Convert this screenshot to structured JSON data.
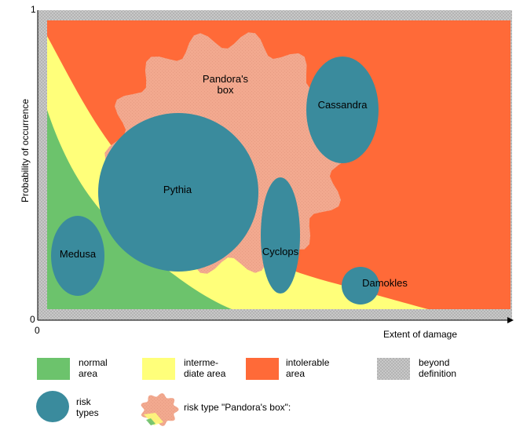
{
  "axes": {
    "y_label": "Probability of occurrence",
    "x_label": "Extent of damage",
    "y_max_tick": "1",
    "y_min_tick": "0",
    "x_min_tick": "0"
  },
  "areas": {
    "normal": "normal area",
    "intermediate": "interme-diate area",
    "intolerable": "intolerable area",
    "beyond": "beyond definition"
  },
  "risk_types": {
    "pandora_line1": "Pandora's",
    "pandora_line2": "box",
    "cassandra": "Cassandra",
    "pythia": "Pythia",
    "medusa": "Medusa",
    "cyclops": "Cyclops",
    "damokles": "Damokles"
  },
  "legend": {
    "normal_line1": "normal",
    "normal_line2": "area",
    "intermediate_line1": "interme-",
    "intermediate_line2": "diate area",
    "intolerable_line1": "intolerable",
    "intolerable_line2": "area",
    "beyond_line1": "beyond",
    "beyond_line2": "definition",
    "risk_line1": "risk",
    "risk_line2": "types",
    "pandora_label": "risk type \"Pandora's box\":"
  },
  "colors": {
    "normal": "#6cc36c",
    "intermediate": "#ffff7a",
    "intolerable": "#ff6a38",
    "beyond": "#c2c2c2",
    "risk": "#3a8b9d",
    "pandora": "#f2a98f"
  }
}
